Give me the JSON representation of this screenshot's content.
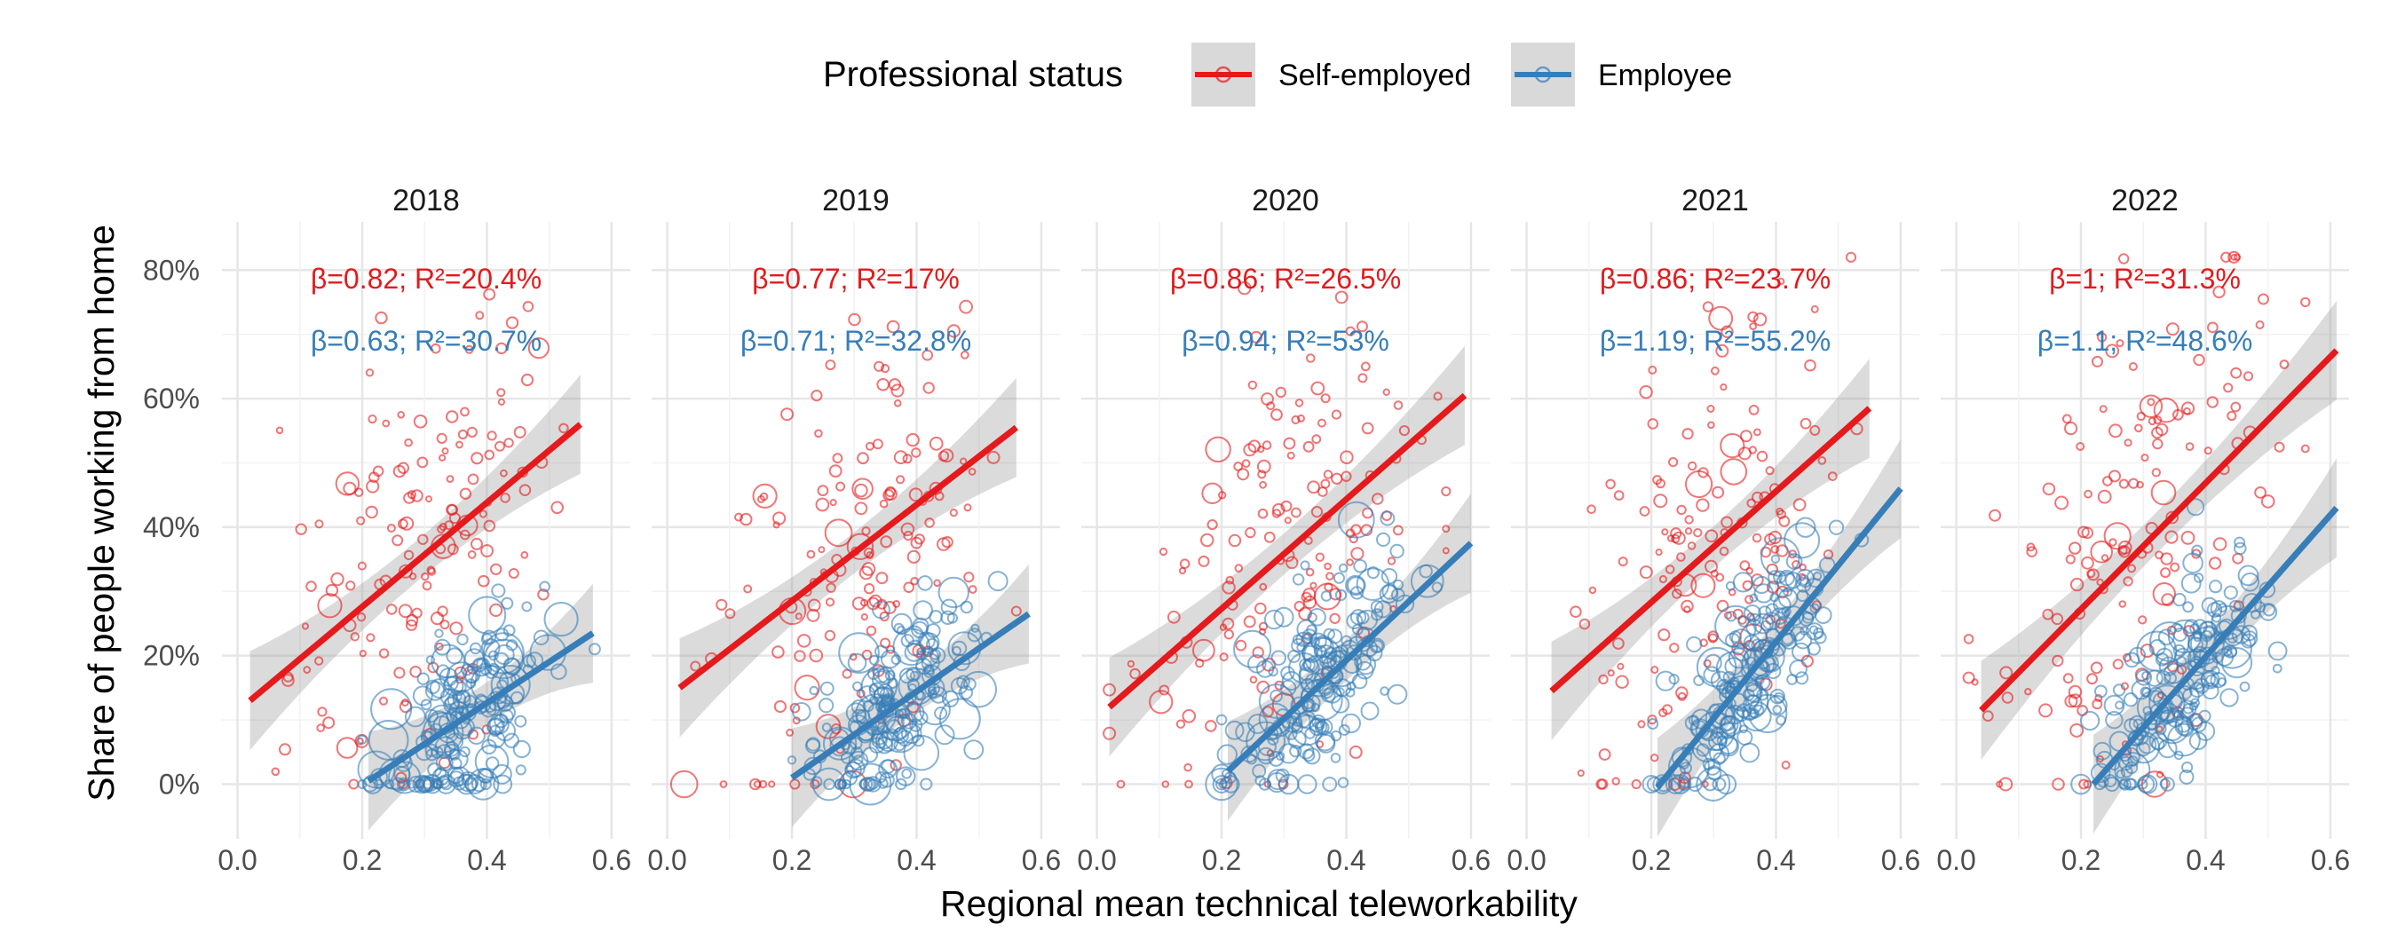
{
  "chart_data": {
    "type": "scatter",
    "facet_by": "year",
    "facets": [
      "2018",
      "2019",
      "2020",
      "2021",
      "2022"
    ],
    "xlabel": "Regional mean technical teleworkability",
    "ylabel": "Share of people working from home",
    "xlim": [
      0.0,
      0.6
    ],
    "ylim": [
      0.0,
      0.8
    ],
    "x_ticks": [
      "0.0",
      "0.2",
      "0.4",
      "0.6"
    ],
    "y_ticks": [
      "0%",
      "20%",
      "40%",
      "60%",
      "80%"
    ],
    "grid": true,
    "legend": {
      "title": "Professional status",
      "position": "top"
    },
    "series": [
      {
        "name": "Self-employed",
        "color": "#e41a1c",
        "marker": "open-circle",
        "fit": "linear with 95% CI band"
      },
      {
        "name": "Employee",
        "color": "#377eb8",
        "marker": "open-circle",
        "fit": "linear with 95% CI band"
      }
    ],
    "regression_lines": [
      {
        "year": "2018",
        "self_employed": {
          "x": [
            0.02,
            0.55
          ],
          "y": [
            0.13,
            0.56
          ]
        },
        "employee": {
          "x": [
            0.21,
            0.57
          ],
          "y": [
            0.005,
            0.235
          ]
        }
      },
      {
        "year": "2019",
        "self_employed": {
          "x": [
            0.02,
            0.56
          ],
          "y": [
            0.15,
            0.555
          ]
        },
        "employee": {
          "x": [
            0.2,
            0.58
          ],
          "y": [
            0.01,
            0.265
          ]
        }
      },
      {
        "year": "2020",
        "self_employed": {
          "x": [
            0.02,
            0.59
          ],
          "y": [
            0.12,
            0.605
          ]
        },
        "employee": {
          "x": [
            0.21,
            0.6
          ],
          "y": [
            0.02,
            0.375
          ]
        }
      },
      {
        "year": "2021",
        "self_employed": {
          "x": [
            0.04,
            0.55
          ],
          "y": [
            0.145,
            0.585
          ]
        },
        "employee": {
          "x": [
            0.21,
            0.6
          ],
          "y": [
            -0.005,
            0.46
          ]
        }
      },
      {
        "year": "2022",
        "self_employed": {
          "x": [
            0.04,
            0.61
          ],
          "y": [
            0.115,
            0.675
          ]
        },
        "employee": {
          "x": [
            0.22,
            0.61
          ],
          "y": [
            0.0,
            0.43
          ]
        }
      }
    ],
    "annotations": [
      {
        "year": "2018",
        "self_employed": {
          "beta": "β=0.82;",
          "r2": "R²=20.4%"
        },
        "employee": {
          "beta": "β=0.63;",
          "r2": "R²=30.7%"
        }
      },
      {
        "year": "2019",
        "self_employed": {
          "beta": "β=0.77;",
          "r2": "R²=17%"
        },
        "employee": {
          "beta": "β=0.71;",
          "r2": "R²=32.8%"
        }
      },
      {
        "year": "2020",
        "self_employed": {
          "beta": "β=0.86;",
          "r2": "R²=26.5%"
        },
        "employee": {
          "beta": "β=0.94;",
          "r2": "R²=53%"
        }
      },
      {
        "year": "2021",
        "self_employed": {
          "beta": "β=0.86;",
          "r2": "R²=23.7%"
        },
        "employee": {
          "beta": "β=1.19;",
          "r2": "R²=55.2%"
        }
      },
      {
        "year": "2022",
        "self_employed": {
          "beta": "β=1;",
          "r2": "R²=31.3%"
        },
        "employee": {
          "beta": "β=1.1;",
          "r2": "R²=48.6%"
        }
      }
    ]
  }
}
